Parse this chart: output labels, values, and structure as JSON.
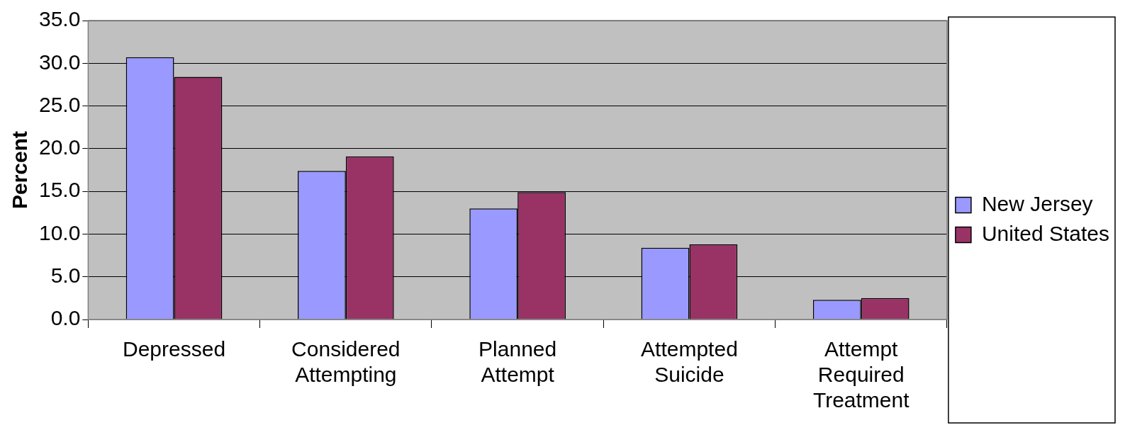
{
  "chart_data": {
    "type": "bar",
    "ylabel": "Percent",
    "categories": [
      "Depressed",
      "Considered Attempting",
      "Planned Attempt",
      "Attempted Suicide",
      "Attempt Required Treatment"
    ],
    "series": [
      {
        "name": "New Jersey",
        "color": "#9999ff",
        "values": [
          30.7,
          17.4,
          13.0,
          8.4,
          2.3
        ]
      },
      {
        "name": "United States",
        "color": "#993366",
        "values": [
          28.4,
          19.1,
          14.9,
          8.8,
          2.5
        ]
      }
    ],
    "ylim": [
      0,
      35
    ],
    "yticks": [
      {
        "value": 0,
        "label": "0.0"
      },
      {
        "value": 5,
        "label": "5.0"
      },
      {
        "value": 10,
        "label": "10.0"
      },
      {
        "value": 15,
        "label": "15.0"
      },
      {
        "value": 20,
        "label": "20.0"
      },
      {
        "value": 25,
        "label": "25.0"
      },
      {
        "value": 30,
        "label": "30.0"
      },
      {
        "value": 35,
        "label": "35.0"
      }
    ],
    "grid": "y",
    "legend": "right"
  }
}
